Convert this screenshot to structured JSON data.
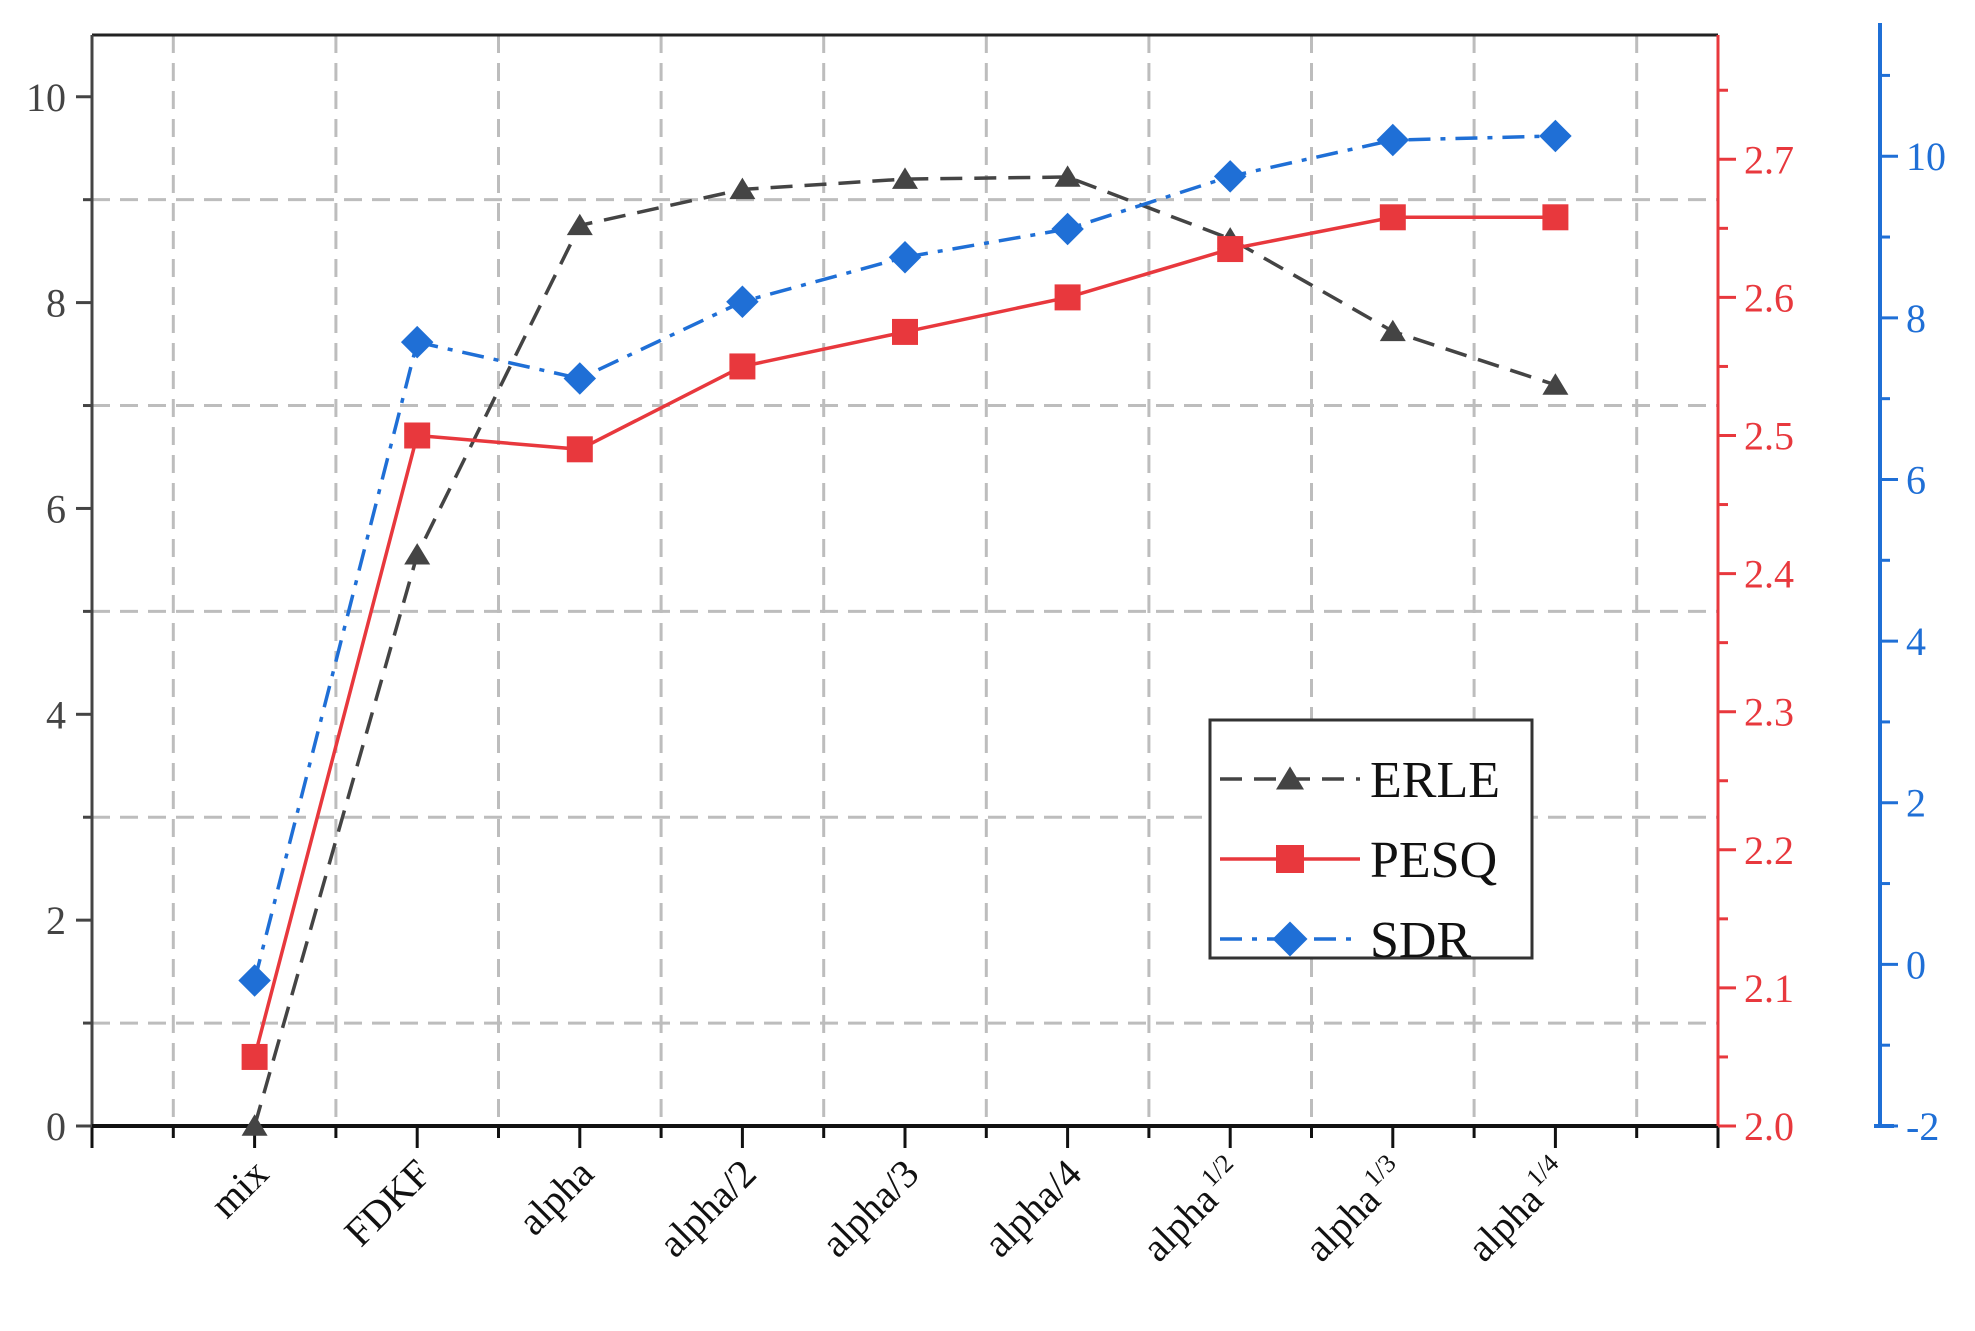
{
  "chart_data": {
    "type": "line",
    "categories": [
      "mix",
      "FDKF",
      "alpha",
      "alpha/2",
      "alpha/3",
      "alpha/4",
      "alpha^1/2",
      "alpha^1/3",
      "alpha^1/4"
    ],
    "category_labels": [
      {
        "base": "mix",
        "sup": ""
      },
      {
        "base": "FDKF",
        "sup": ""
      },
      {
        "base": "alpha",
        "sup": ""
      },
      {
        "base": "alpha/2",
        "sup": ""
      },
      {
        "base": "alpha/3",
        "sup": ""
      },
      {
        "base": "alpha/4",
        "sup": ""
      },
      {
        "base": "alpha",
        "sup": "1/2"
      },
      {
        "base": "alpha",
        "sup": "1/3"
      },
      {
        "base": "alpha",
        "sup": "1/4"
      }
    ],
    "axes": {
      "left": {
        "min": 0,
        "max": 10.6,
        "ticks": [
          "0",
          "2",
          "4",
          "6",
          "8",
          "10"
        ],
        "color": "#444444"
      },
      "right_pesq": {
        "min": 2.0,
        "max": 2.79,
        "ticks": [
          "2.0",
          "2.1",
          "2.2",
          "2.3",
          "2.4",
          "2.5",
          "2.6",
          "2.7"
        ],
        "color": "#e8383d"
      },
      "right_sdr": {
        "min": -2,
        "max": 11.5,
        "ticks": [
          "-2",
          "0",
          "2",
          "4",
          "6",
          "8",
          "10"
        ],
        "color": "#1f6fd6"
      }
    },
    "series": [
      {
        "name": "ERLE",
        "axis": "left",
        "marker": "triangle",
        "line_style": "dashed",
        "color": "#444444",
        "values": [
          0.0,
          5.55,
          8.75,
          9.1,
          9.2,
          9.22,
          8.62,
          7.72,
          7.2
        ]
      },
      {
        "name": "PESQ",
        "axis": "right_pesq",
        "marker": "square",
        "line_style": "solid",
        "color": "#e8383d",
        "values": [
          2.05,
          2.5,
          2.49,
          2.55,
          2.575,
          2.6,
          2.635,
          2.658,
          2.658
        ]
      },
      {
        "name": "SDR",
        "axis": "right_sdr",
        "marker": "diamond",
        "line_style": "dashdot",
        "color": "#1f6fd6",
        "values": [
          -0.2,
          7.7,
          7.25,
          8.2,
          8.75,
          9.1,
          9.75,
          10.2,
          10.25
        ]
      }
    ],
    "grid": true,
    "legend_position": "bottom-right"
  }
}
